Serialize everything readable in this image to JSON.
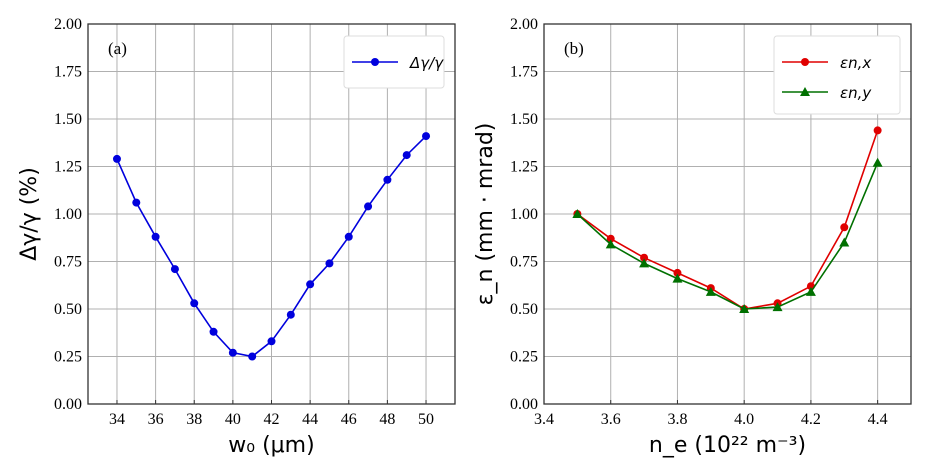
{
  "chart_data": [
    {
      "type": "line",
      "panel_label": "(a)",
      "xlabel": "w₀ (μm)",
      "ylabel": "Δγ/γ (%)",
      "xlim": [
        32.5,
        51.5
      ],
      "ylim": [
        0,
        2
      ],
      "xticks": [
        34,
        36,
        38,
        40,
        42,
        44,
        46,
        48,
        50
      ],
      "yticks": [
        "0.00",
        "0.25",
        "0.50",
        "0.75",
        "1.00",
        "1.25",
        "1.50",
        "1.75",
        "2.00"
      ],
      "grid": true,
      "legend_position": "top-right",
      "series": [
        {
          "name": "Δγ/γ",
          "color": "#0000dd",
          "marker": "circle",
          "x": [
            34,
            35,
            36,
            37,
            38,
            39,
            40,
            41,
            42,
            43,
            44,
            45,
            46,
            47,
            48,
            49,
            50
          ],
          "y": [
            1.29,
            1.06,
            0.88,
            0.71,
            0.53,
            0.38,
            0.27,
            0.25,
            0.33,
            0.47,
            0.63,
            0.74,
            0.88,
            1.04,
            1.18,
            1.31,
            1.41
          ]
        }
      ]
    },
    {
      "type": "line",
      "panel_label": "(b)",
      "xlabel": "n_e (10²² m⁻³)",
      "ylabel": "ε_n (mm · mrad)",
      "xlim": [
        3.4,
        4.5
      ],
      "ylim": [
        0,
        2
      ],
      "xticks": [
        "3.4",
        "3.6",
        "3.8",
        "4.0",
        "4.2",
        "4.4"
      ],
      "yticks": [
        "0.00",
        "0.25",
        "0.50",
        "0.75",
        "1.00",
        "1.25",
        "1.50",
        "1.75",
        "2.00"
      ],
      "grid": true,
      "legend_position": "top-right",
      "series": [
        {
          "name": "εn,x",
          "color": "#e00000",
          "marker": "circle",
          "x": [
            3.5,
            3.6,
            3.7,
            3.8,
            3.9,
            4.0,
            4.1,
            4.2,
            4.3,
            4.4
          ],
          "y": [
            1.0,
            0.87,
            0.77,
            0.69,
            0.61,
            0.5,
            0.53,
            0.62,
            0.93,
            1.44
          ]
        },
        {
          "name": "εn,y",
          "color": "#007000",
          "marker": "triangle",
          "x": [
            3.5,
            3.6,
            3.7,
            3.8,
            3.9,
            4.0,
            4.1,
            4.2,
            4.3,
            4.4
          ],
          "y": [
            1.0,
            0.84,
            0.74,
            0.66,
            0.59,
            0.5,
            0.51,
            0.59,
            0.85,
            1.27
          ]
        }
      ]
    }
  ]
}
